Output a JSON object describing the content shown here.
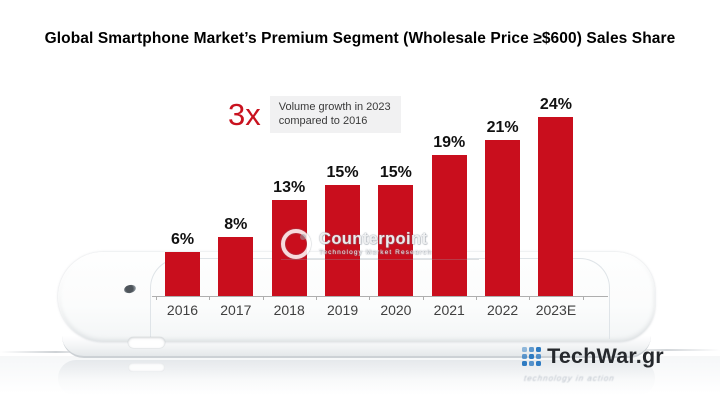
{
  "title": "Global Smartphone Market’s Premium Segment (Wholesale Price ≥$600) Sales Share",
  "annotation": {
    "multiplier": "3x",
    "line1": "Volume growth in 2023",
    "line2": "compared to 2016"
  },
  "chart_data": {
    "type": "bar",
    "title": "Global Smartphone Market’s Premium Segment (Wholesale Price ≥$600) Sales Share",
    "categories": [
      "2016",
      "2017",
      "2018",
      "2019",
      "2020",
      "2021",
      "2022",
      "2023E"
    ],
    "values": [
      6,
      8,
      13,
      15,
      15,
      19,
      21,
      24
    ],
    "unit": "%",
    "xlabel": "",
    "ylabel": "",
    "ylim": [
      0,
      26
    ],
    "grid": false,
    "legend": "none",
    "bar_color": "#c90e1d",
    "accent_red": "#c9121f",
    "value_labels": [
      "6%",
      "8%",
      "13%",
      "15%",
      "15%",
      "19%",
      "21%",
      "24%"
    ]
  },
  "watermark": {
    "name": "Counterpoint",
    "subtitle": "Technology Market Research"
  },
  "branding": {
    "name": "TechWar.gr",
    "tagline": "technology in action",
    "dot_color": "#2e7bc2"
  }
}
